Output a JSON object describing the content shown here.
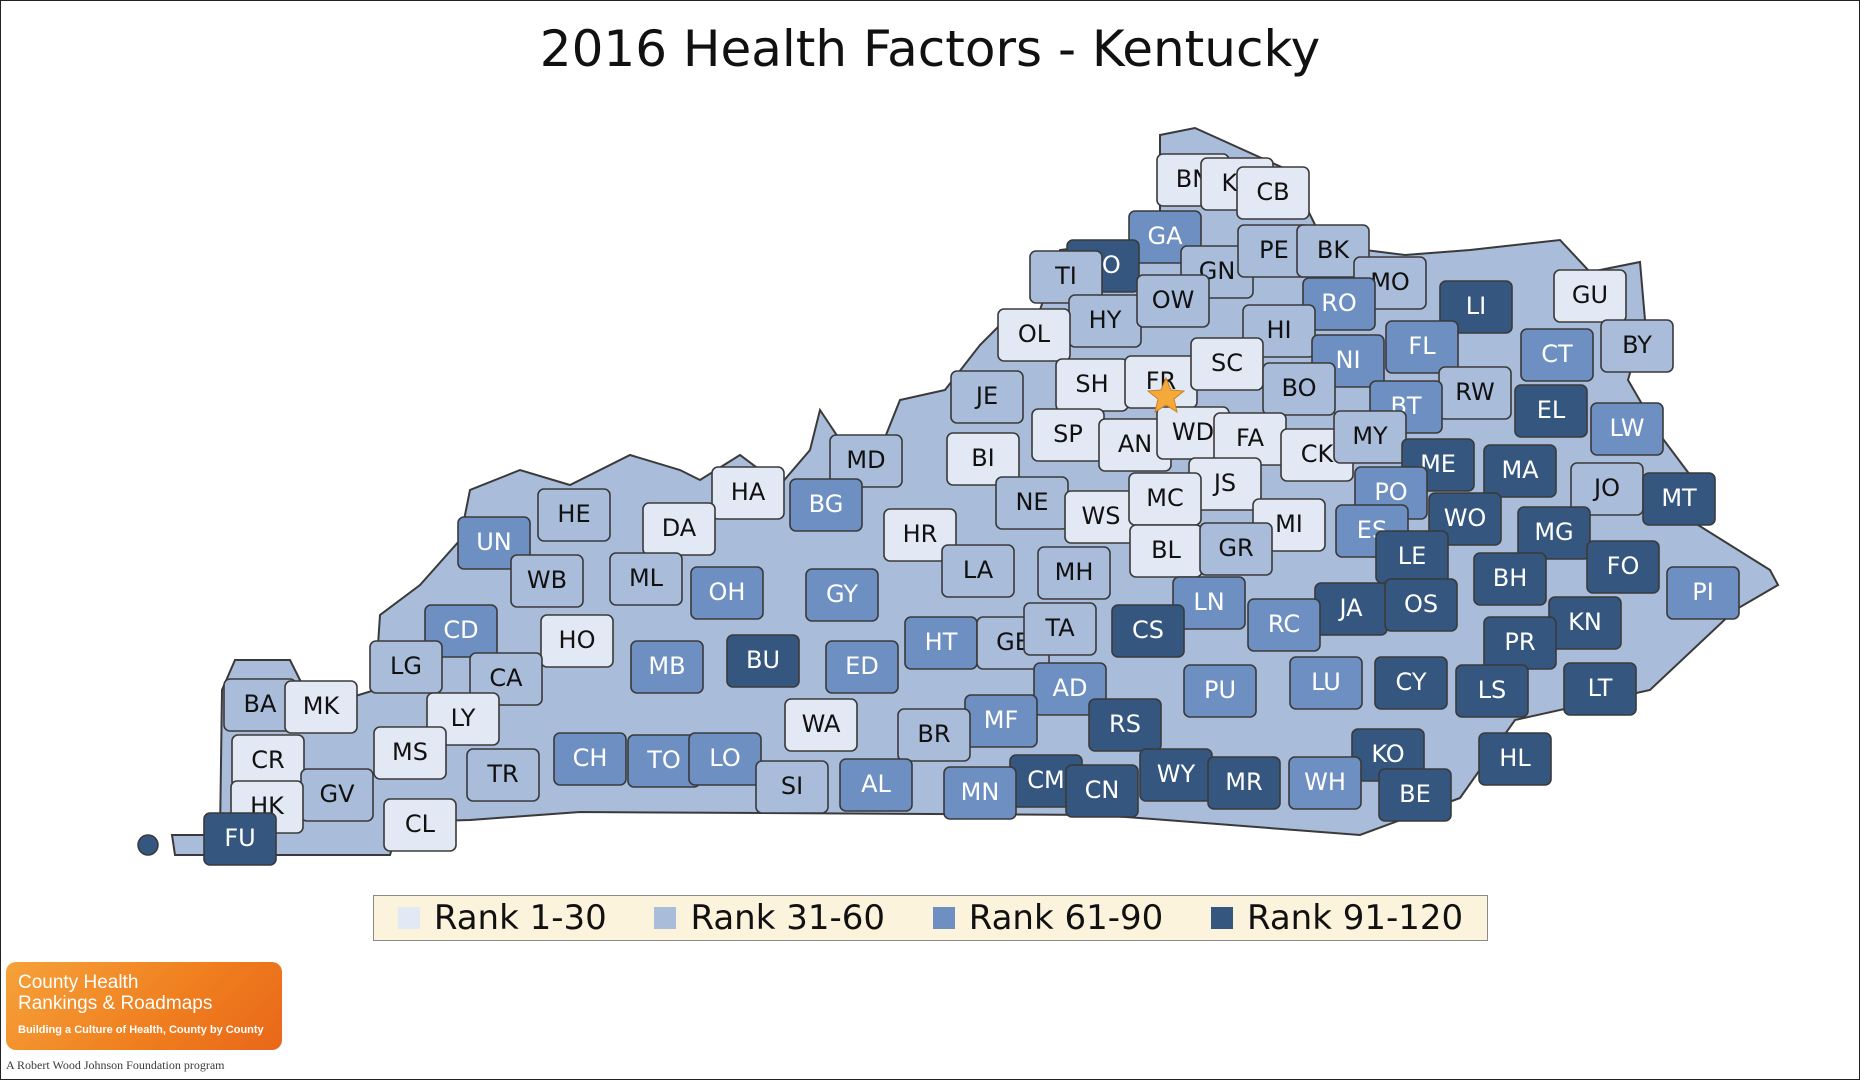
{
  "title": "2016 Health Factors - Kentucky",
  "colors": {
    "rank_1_30": "#e2e9f4",
    "rank_31_60": "#a9bcd9",
    "rank_61_90": "#6d8fc2",
    "rank_91_120": "#34567f",
    "capital_star": "#f4a93a"
  },
  "legend": [
    {
      "label": "Rank 1-30",
      "color": "#e2e9f4"
    },
    {
      "label": "Rank 31-60",
      "color": "#a9bcd9"
    },
    {
      "label": "Rank 61-90",
      "color": "#6d8fc2"
    },
    {
      "label": "Rank 91-120",
      "color": "#34567f"
    }
  ],
  "counties": [
    {
      "label": "BN",
      "tier": 1
    },
    {
      "label": "KE",
      "tier": 1
    },
    {
      "label": "CB",
      "tier": 1
    },
    {
      "label": "GA",
      "tier": 3
    },
    {
      "label": "CO",
      "tier": 4
    },
    {
      "label": "TI",
      "tier": 2
    },
    {
      "label": "GN",
      "tier": 2
    },
    {
      "label": "PE",
      "tier": 2
    },
    {
      "label": "BK",
      "tier": 2
    },
    {
      "label": "MO",
      "tier": 2
    },
    {
      "label": "LI",
      "tier": 4
    },
    {
      "label": "GU",
      "tier": 1
    },
    {
      "label": "BY",
      "tier": 2
    },
    {
      "label": "RO",
      "tier": 3
    },
    {
      "label": "HY",
      "tier": 2
    },
    {
      "label": "OW",
      "tier": 2
    },
    {
      "label": "OL",
      "tier": 1
    },
    {
      "label": "HI",
      "tier": 2
    },
    {
      "label": "NI",
      "tier": 3
    },
    {
      "label": "FL",
      "tier": 3
    },
    {
      "label": "CT",
      "tier": 3
    },
    {
      "label": "SH",
      "tier": 1
    },
    {
      "label": "FR",
      "tier": 1
    },
    {
      "label": "SC",
      "tier": 1
    },
    {
      "label": "BO",
      "tier": 2
    },
    {
      "label": "RW",
      "tier": 2
    },
    {
      "label": "BT",
      "tier": 3
    },
    {
      "label": "EL",
      "tier": 4
    },
    {
      "label": "LW",
      "tier": 3
    },
    {
      "label": "JE",
      "tier": 2
    },
    {
      "label": "SP",
      "tier": 1
    },
    {
      "label": "AN",
      "tier": 1
    },
    {
      "label": "WD",
      "tier": 1
    },
    {
      "label": "FA",
      "tier": 1
    },
    {
      "label": "CK",
      "tier": 1
    },
    {
      "label": "MY",
      "tier": 2
    },
    {
      "label": "ME",
      "tier": 4
    },
    {
      "label": "MA",
      "tier": 4
    },
    {
      "label": "MD",
      "tier": 2
    },
    {
      "label": "BI",
      "tier": 1
    },
    {
      "label": "HA",
      "tier": 1
    },
    {
      "label": "JS",
      "tier": 1
    },
    {
      "label": "PO",
      "tier": 3
    },
    {
      "label": "JO",
      "tier": 2
    },
    {
      "label": "MT",
      "tier": 4
    },
    {
      "label": "DA",
      "tier": 1
    },
    {
      "label": "BG",
      "tier": 3
    },
    {
      "label": "HR",
      "tier": 1
    },
    {
      "label": "NE",
      "tier": 2
    },
    {
      "label": "WS",
      "tier": 1
    },
    {
      "label": "MC",
      "tier": 1
    },
    {
      "label": "MI",
      "tier": 1
    },
    {
      "label": "WO",
      "tier": 4
    },
    {
      "label": "MG",
      "tier": 4
    },
    {
      "label": "HE",
      "tier": 2
    },
    {
      "label": "ES",
      "tier": 3
    },
    {
      "label": "UN",
      "tier": 3
    },
    {
      "label": "BL",
      "tier": 1
    },
    {
      "label": "GR",
      "tier": 2
    },
    {
      "label": "LE",
      "tier": 4
    },
    {
      "label": "FO",
      "tier": 4
    },
    {
      "label": "WB",
      "tier": 2
    },
    {
      "label": "ML",
      "tier": 2
    },
    {
      "label": "LA",
      "tier": 2
    },
    {
      "label": "MH",
      "tier": 2
    },
    {
      "label": "BH",
      "tier": 4
    },
    {
      "label": "PI",
      "tier": 3
    },
    {
      "label": "OH",
      "tier": 3
    },
    {
      "label": "GY",
      "tier": 3
    },
    {
      "label": "JA",
      "tier": 4
    },
    {
      "label": "OS",
      "tier": 4
    },
    {
      "label": "KN",
      "tier": 4
    },
    {
      "label": "CD",
      "tier": 3
    },
    {
      "label": "HO",
      "tier": 1
    },
    {
      "label": "LN",
      "tier": 3
    },
    {
      "label": "RC",
      "tier": 3
    },
    {
      "label": "HT",
      "tier": 3
    },
    {
      "label": "GE",
      "tier": 2
    },
    {
      "label": "TA",
      "tier": 2
    },
    {
      "label": "CS",
      "tier": 4
    },
    {
      "label": "PR",
      "tier": 4
    },
    {
      "label": "LG",
      "tier": 2
    },
    {
      "label": "BU",
      "tier": 4
    },
    {
      "label": "ED",
      "tier": 3
    },
    {
      "label": "MB",
      "tier": 3
    },
    {
      "label": "CA",
      "tier": 2
    },
    {
      "label": "CY",
      "tier": 4
    },
    {
      "label": "LS",
      "tier": 4
    },
    {
      "label": "LT",
      "tier": 4
    },
    {
      "label": "PU",
      "tier": 3
    },
    {
      "label": "LU",
      "tier": 3
    },
    {
      "label": "AD",
      "tier": 3
    },
    {
      "label": "BA",
      "tier": 2
    },
    {
      "label": "MK",
      "tier": 1
    },
    {
      "label": "LY",
      "tier": 1
    },
    {
      "label": "WA",
      "tier": 1
    },
    {
      "label": "CH",
      "tier": 3
    },
    {
      "label": "MF",
      "tier": 3
    },
    {
      "label": "BR",
      "tier": 2
    },
    {
      "label": "RS",
      "tier": 4
    },
    {
      "label": "KO",
      "tier": 4
    },
    {
      "label": "CR",
      "tier": 1
    },
    {
      "label": "MS",
      "tier": 1
    },
    {
      "label": "TO",
      "tier": 3
    },
    {
      "label": "LO",
      "tier": 3
    },
    {
      "label": "TR",
      "tier": 2
    },
    {
      "label": "HL",
      "tier": 4
    },
    {
      "label": "GV",
      "tier": 2
    },
    {
      "label": "SI",
      "tier": 2
    },
    {
      "label": "AL",
      "tier": 3
    },
    {
      "label": "CM",
      "tier": 4
    },
    {
      "label": "CN",
      "tier": 4
    },
    {
      "label": "WY",
      "tier": 4
    },
    {
      "label": "MR",
      "tier": 4
    },
    {
      "label": "WH",
      "tier": 3
    },
    {
      "label": "BE",
      "tier": 4
    },
    {
      "label": "MN",
      "tier": 3
    },
    {
      "label": "HK",
      "tier": 1
    },
    {
      "label": "CL",
      "tier": 1
    },
    {
      "label": "FU",
      "tier": 4
    }
  ],
  "logo": {
    "line1": "County Health",
    "line2": "Rankings & Roadmaps",
    "line3": "Building a Culture of Health, County by County",
    "sub": "A Robert Wood Johnson Foundation program"
  }
}
